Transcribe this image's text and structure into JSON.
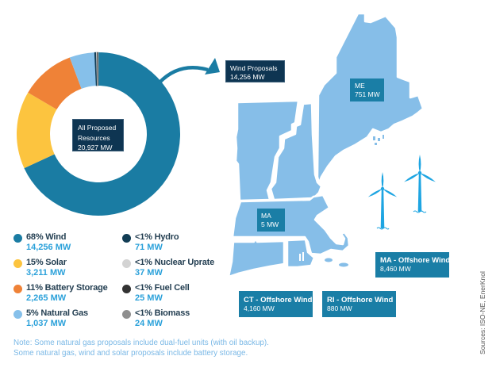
{
  "chart_data": {
    "type": "pie",
    "donut": true,
    "title": "All Proposed Resources",
    "total": 20927,
    "total_label": "20,927 MW",
    "unit": "MW",
    "categories": [
      "Wind",
      "Solar",
      "Battery Storage",
      "Natural Gas",
      "Hydro",
      "Nuclear Uprate",
      "Fuel Cell",
      "Biomass"
    ],
    "values": [
      14256,
      3211,
      2265,
      1037,
      71,
      37,
      25,
      24
    ],
    "percent_labels": [
      "68%",
      "15%",
      "11%",
      "5%",
      "<1%",
      "<1%",
      "<1%",
      "<1%"
    ],
    "colors": [
      "#1a7ca3",
      "#fcc43f",
      "#ef8237",
      "#86c0ea",
      "#123d55",
      "#d3d3d3",
      "#333333",
      "#8f8f8f"
    ],
    "start_angle_deg": -90,
    "direction": "clockwise",
    "legend_position": "below"
  },
  "center_label": {
    "line1": "All Proposed",
    "line2": "Resources",
    "line3": "20,927 MW"
  },
  "legend": [
    {
      "label": "68% Wind",
      "value": "14,256 MW",
      "color": "#1a7ca3"
    },
    {
      "label": "15% Solar",
      "value": "3,211 MW",
      "color": "#fcc43f"
    },
    {
      "label": "11% Battery Storage",
      "value": "2,265 MW",
      "color": "#ef8237"
    },
    {
      "label": "5% Natural Gas",
      "value": "1,037 MW",
      "color": "#86c0ea"
    },
    {
      "label": "<1% Hydro",
      "value": "71 MW",
      "color": "#123d55"
    },
    {
      "label": "<1% Nuclear Uprate",
      "value": "37 MW",
      "color": "#d3d3d3"
    },
    {
      "label": "<1% Fuel Cell",
      "value": "25 MW",
      "color": "#333333"
    },
    {
      "label": "<1% Biomass",
      "value": "24 MW",
      "color": "#8f8f8f"
    }
  ],
  "callout": {
    "title": "Wind Proposals",
    "value": "14,256 MW"
  },
  "map": {
    "state_color": "#86bee8",
    "label_color": "#1a7ea6",
    "turbine_color": "#1ea5e2",
    "labels": [
      {
        "id": "me",
        "title": "ME",
        "value": "751 MW"
      },
      {
        "id": "ma",
        "title": "MA",
        "value": "5 MW"
      },
      {
        "id": "ma-offshore",
        "title": "MA - Offshore Wind",
        "value": "8,460 MW"
      },
      {
        "id": "ct-offshore",
        "title": "CT - Offshore Wind",
        "value": "4,160 MW"
      },
      {
        "id": "ri-offshore",
        "title": "RI - Offshore Wind",
        "value": "880 MW"
      }
    ]
  },
  "note": {
    "line1": "Note: Some natural gas proposals include dual-fuel units (with oil backup).",
    "line2": "Some natural gas, wind and solar proposals include battery storage."
  },
  "sources": "Sources: ISO-NE, EnerKnol"
}
